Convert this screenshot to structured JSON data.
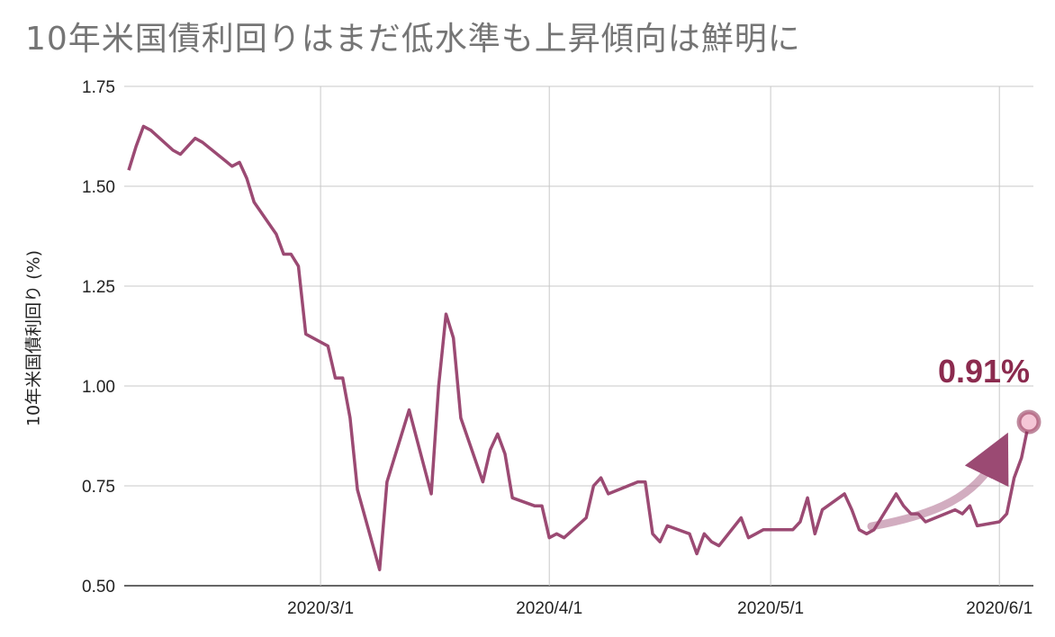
{
  "chart_data": {
    "type": "line",
    "title": "10年米国債利回りはまだ低水準も上昇傾向は鮮明に",
    "ylabel": "10年米国債利回り (%)",
    "xlabel": "",
    "ylim": [
      0.5,
      1.75
    ],
    "yticks": [
      "0.50",
      "0.75",
      "1.00",
      "1.25",
      "1.50",
      "1.75"
    ],
    "xticks": [
      "2020/3/1",
      "2020/4/1",
      "2020/5/1",
      "2020/6/1"
    ],
    "grid": true,
    "line_color": "#9b4a73",
    "annotation": {
      "text": "0.91%",
      "date": "2020-06-05",
      "value": 0.91,
      "color": "#8b2a4e"
    },
    "series": [
      {
        "x": [
          "2020-02-04",
          "2020-02-05",
          "2020-02-06",
          "2020-02-07",
          "2020-02-10",
          "2020-02-11",
          "2020-02-12",
          "2020-02-13",
          "2020-02-14",
          "2020-02-18",
          "2020-02-19",
          "2020-02-20",
          "2020-02-21",
          "2020-02-24",
          "2020-02-25",
          "2020-02-26",
          "2020-02-27",
          "2020-02-28",
          "2020-03-02",
          "2020-03-03",
          "2020-03-04",
          "2020-03-05",
          "2020-03-06",
          "2020-03-09",
          "2020-03-10",
          "2020-03-11",
          "2020-03-12",
          "2020-03-13",
          "2020-03-16",
          "2020-03-17",
          "2020-03-18",
          "2020-03-19",
          "2020-03-20",
          "2020-03-23",
          "2020-03-24",
          "2020-03-25",
          "2020-03-26",
          "2020-03-27",
          "2020-03-30",
          "2020-03-31",
          "2020-04-01",
          "2020-04-02",
          "2020-04-03",
          "2020-04-06",
          "2020-04-07",
          "2020-04-08",
          "2020-04-09",
          "2020-04-13",
          "2020-04-14",
          "2020-04-15",
          "2020-04-16",
          "2020-04-17",
          "2020-04-20",
          "2020-04-21",
          "2020-04-22",
          "2020-04-23",
          "2020-04-24",
          "2020-04-27",
          "2020-04-28",
          "2020-04-29",
          "2020-04-30",
          "2020-05-01",
          "2020-05-04",
          "2020-05-05",
          "2020-05-06",
          "2020-05-07",
          "2020-05-08",
          "2020-05-11",
          "2020-05-12",
          "2020-05-13",
          "2020-05-14",
          "2020-05-15",
          "2020-05-18",
          "2020-05-19",
          "2020-05-20",
          "2020-05-21",
          "2020-05-22",
          "2020-05-26",
          "2020-05-27",
          "2020-05-28",
          "2020-05-29",
          "2020-06-01",
          "2020-06-02",
          "2020-06-03",
          "2020-06-04",
          "2020-06-05"
        ],
        "y": [
          1.54,
          1.6,
          1.65,
          1.64,
          1.59,
          1.58,
          1.6,
          1.62,
          1.61,
          1.55,
          1.56,
          1.52,
          1.46,
          1.38,
          1.33,
          1.33,
          1.3,
          1.13,
          1.1,
          1.02,
          1.02,
          0.92,
          0.74,
          0.54,
          0.76,
          0.82,
          0.88,
          0.94,
          0.73,
          1.0,
          1.18,
          1.12,
          0.92,
          0.76,
          0.84,
          0.88,
          0.83,
          0.72,
          0.7,
          0.7,
          0.62,
          0.63,
          0.62,
          0.67,
          0.75,
          0.77,
          0.73,
          0.76,
          0.76,
          0.63,
          0.61,
          0.65,
          0.63,
          0.58,
          0.63,
          0.61,
          0.6,
          0.67,
          0.62,
          0.63,
          0.64,
          0.64,
          0.64,
          0.66,
          0.72,
          0.63,
          0.69,
          0.73,
          0.69,
          0.64,
          0.63,
          0.64,
          0.73,
          0.7,
          0.68,
          0.68,
          0.66,
          0.69,
          0.68,
          0.7,
          0.65,
          0.66,
          0.68,
          0.77,
          0.82,
          0.91
        ]
      }
    ]
  }
}
